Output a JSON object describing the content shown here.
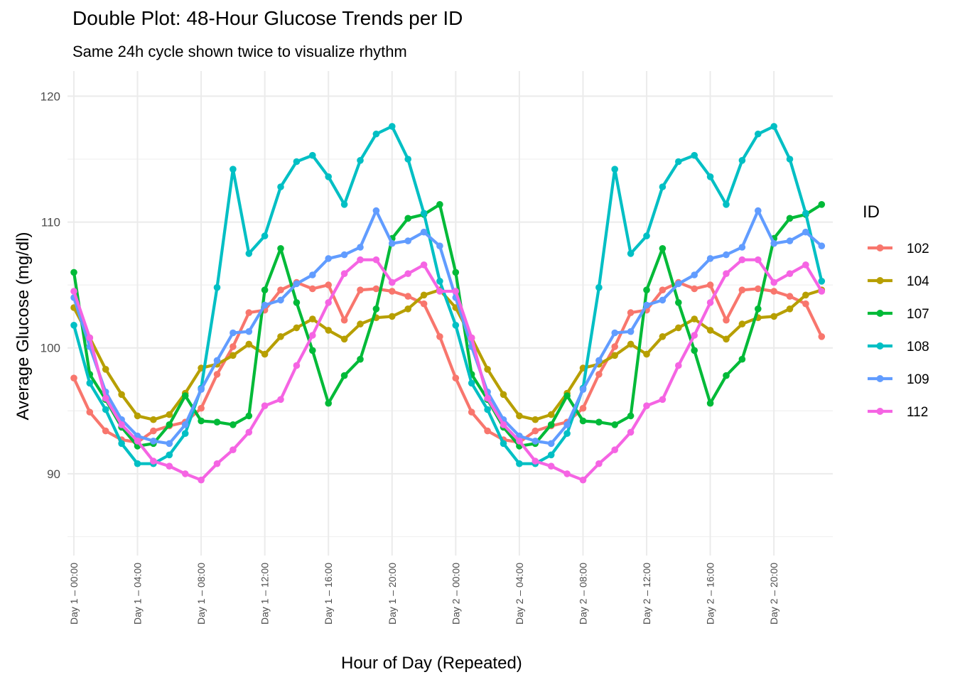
{
  "chart_data": {
    "type": "line",
    "title": "Double Plot: 48-Hour Glucose Trends per ID",
    "subtitle": "Same 24h cycle shown twice to visualize rhythm",
    "xlabel": "Hour of Day (Repeated)",
    "ylabel": "Average Glucose (mg/dl)",
    "ylim": [
      83.5,
      122
    ],
    "y_ticks": [
      90,
      100,
      110,
      120
    ],
    "x_ticks": [
      {
        "x": 0,
        "label": "Day 1 – 00:00"
      },
      {
        "x": 4,
        "label": "Day 1 – 04:00"
      },
      {
        "x": 8,
        "label": "Day 1 – 08:00"
      },
      {
        "x": 12,
        "label": "Day 1 – 12:00"
      },
      {
        "x": 16,
        "label": "Day 1 – 16:00"
      },
      {
        "x": 20,
        "label": "Day 1 – 20:00"
      },
      {
        "x": 24,
        "label": "Day 2 – 00:00"
      },
      {
        "x": 28,
        "label": "Day 2 – 04:00"
      },
      {
        "x": 32,
        "label": "Day 2 – 08:00"
      },
      {
        "x": 36,
        "label": "Day 2 – 12:00"
      },
      {
        "x": 40,
        "label": "Day 2 – 16:00"
      },
      {
        "x": 44,
        "label": "Day 2 – 20:00"
      }
    ],
    "xlim": [
      -0.4,
      47.7
    ],
    "grid": true,
    "legend": {
      "title": "ID",
      "placement": "right"
    },
    "series_hours": 24,
    "repeat_cycles": 2,
    "series": [
      {
        "name": "102",
        "color": "#F8766D",
        "values": [
          97.6,
          94.9,
          93.4,
          92.7,
          92.5,
          93.4,
          93.8,
          94.1,
          95.2,
          97.9,
          100.1,
          102.8,
          103.0,
          104.6,
          105.2,
          104.7,
          105.0,
          102.2,
          104.6,
          104.7,
          104.5,
          104.1,
          103.5,
          100.9
        ]
      },
      {
        "name": "104",
        "color": "#B79F00",
        "values": [
          103.2,
          100.8,
          98.3,
          96.3,
          94.6,
          94.3,
          94.7,
          96.4,
          98.4,
          98.7,
          99.4,
          100.3,
          99.5,
          100.9,
          101.6,
          102.3,
          101.4,
          100.7,
          101.9,
          102.4,
          102.5,
          103.1,
          104.2,
          104.6
        ]
      },
      {
        "name": "107",
        "color": "#00BA38",
        "values": [
          106.0,
          97.9,
          95.9,
          93.7,
          92.2,
          92.4,
          93.9,
          96.2,
          94.2,
          94.1,
          93.9,
          94.6,
          104.6,
          107.9,
          103.6,
          99.8,
          95.6,
          97.8,
          99.1,
          103.1,
          108.7,
          110.3,
          110.6,
          111.4
        ]
      },
      {
        "name": "108",
        "color": "#00BFC4",
        "values": [
          101.8,
          97.2,
          95.1,
          92.4,
          90.8,
          90.8,
          91.5,
          93.2,
          96.8,
          104.8,
          114.2,
          107.5,
          108.9,
          112.8,
          114.8,
          115.3,
          113.6,
          111.4,
          114.9,
          117.0,
          117.6,
          115.0,
          110.7,
          105.3
        ]
      },
      {
        "name": "109",
        "color": "#619CFF",
        "values": [
          104.0,
          100.1,
          96.5,
          94.3,
          93.0,
          92.6,
          92.4,
          93.9,
          96.7,
          99.0,
          101.2,
          101.3,
          103.4,
          103.8,
          105.1,
          105.8,
          107.1,
          107.4,
          108.0,
          110.9,
          108.3,
          108.5,
          109.2,
          108.1
        ]
      },
      {
        "name": "112",
        "color": "#F564E3",
        "values": [
          104.5,
          100.8,
          96.0,
          93.9,
          92.6,
          91.0,
          90.6,
          90.0,
          89.5,
          90.8,
          91.9,
          93.3,
          95.4,
          95.9,
          98.6,
          101.0,
          103.6,
          105.9,
          107.0,
          107.0,
          105.2,
          105.9,
          106.6,
          104.5
        ]
      }
    ]
  }
}
